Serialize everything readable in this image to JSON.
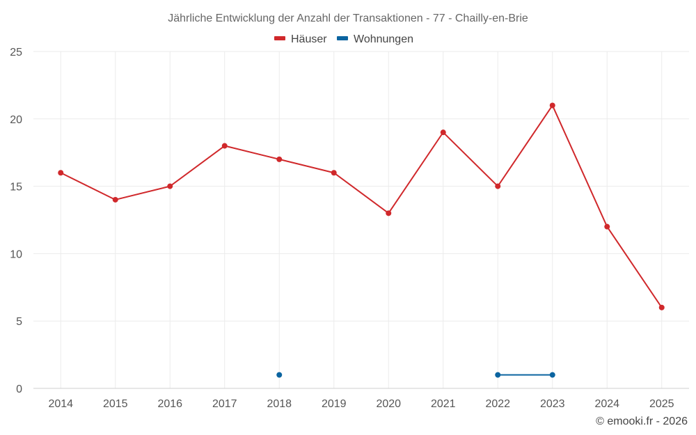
{
  "chart_data": {
    "type": "line",
    "title": "Jährliche Entwicklung der Anzahl der Transaktionen - 77 - Chailly-en-Brie",
    "categories": [
      "2014",
      "2015",
      "2016",
      "2017",
      "2018",
      "2019",
      "2020",
      "2021",
      "2022",
      "2023",
      "2024",
      "2025"
    ],
    "ylim": [
      0,
      25
    ],
    "yticks": [
      0,
      5,
      10,
      15,
      20,
      25
    ],
    "grid": true,
    "legend_position": "top-center",
    "series": [
      {
        "name": "Häuser",
        "color": "#d0282b",
        "values": [
          16,
          14,
          15,
          18,
          17,
          16,
          13,
          19,
          15,
          21,
          12,
          6
        ]
      },
      {
        "name": "Wohnungen",
        "color": "#0b64a0",
        "values": [
          null,
          null,
          null,
          null,
          1,
          null,
          null,
          null,
          1,
          1,
          null,
          null
        ]
      }
    ],
    "credit": "© emooki.fr - 2026"
  }
}
